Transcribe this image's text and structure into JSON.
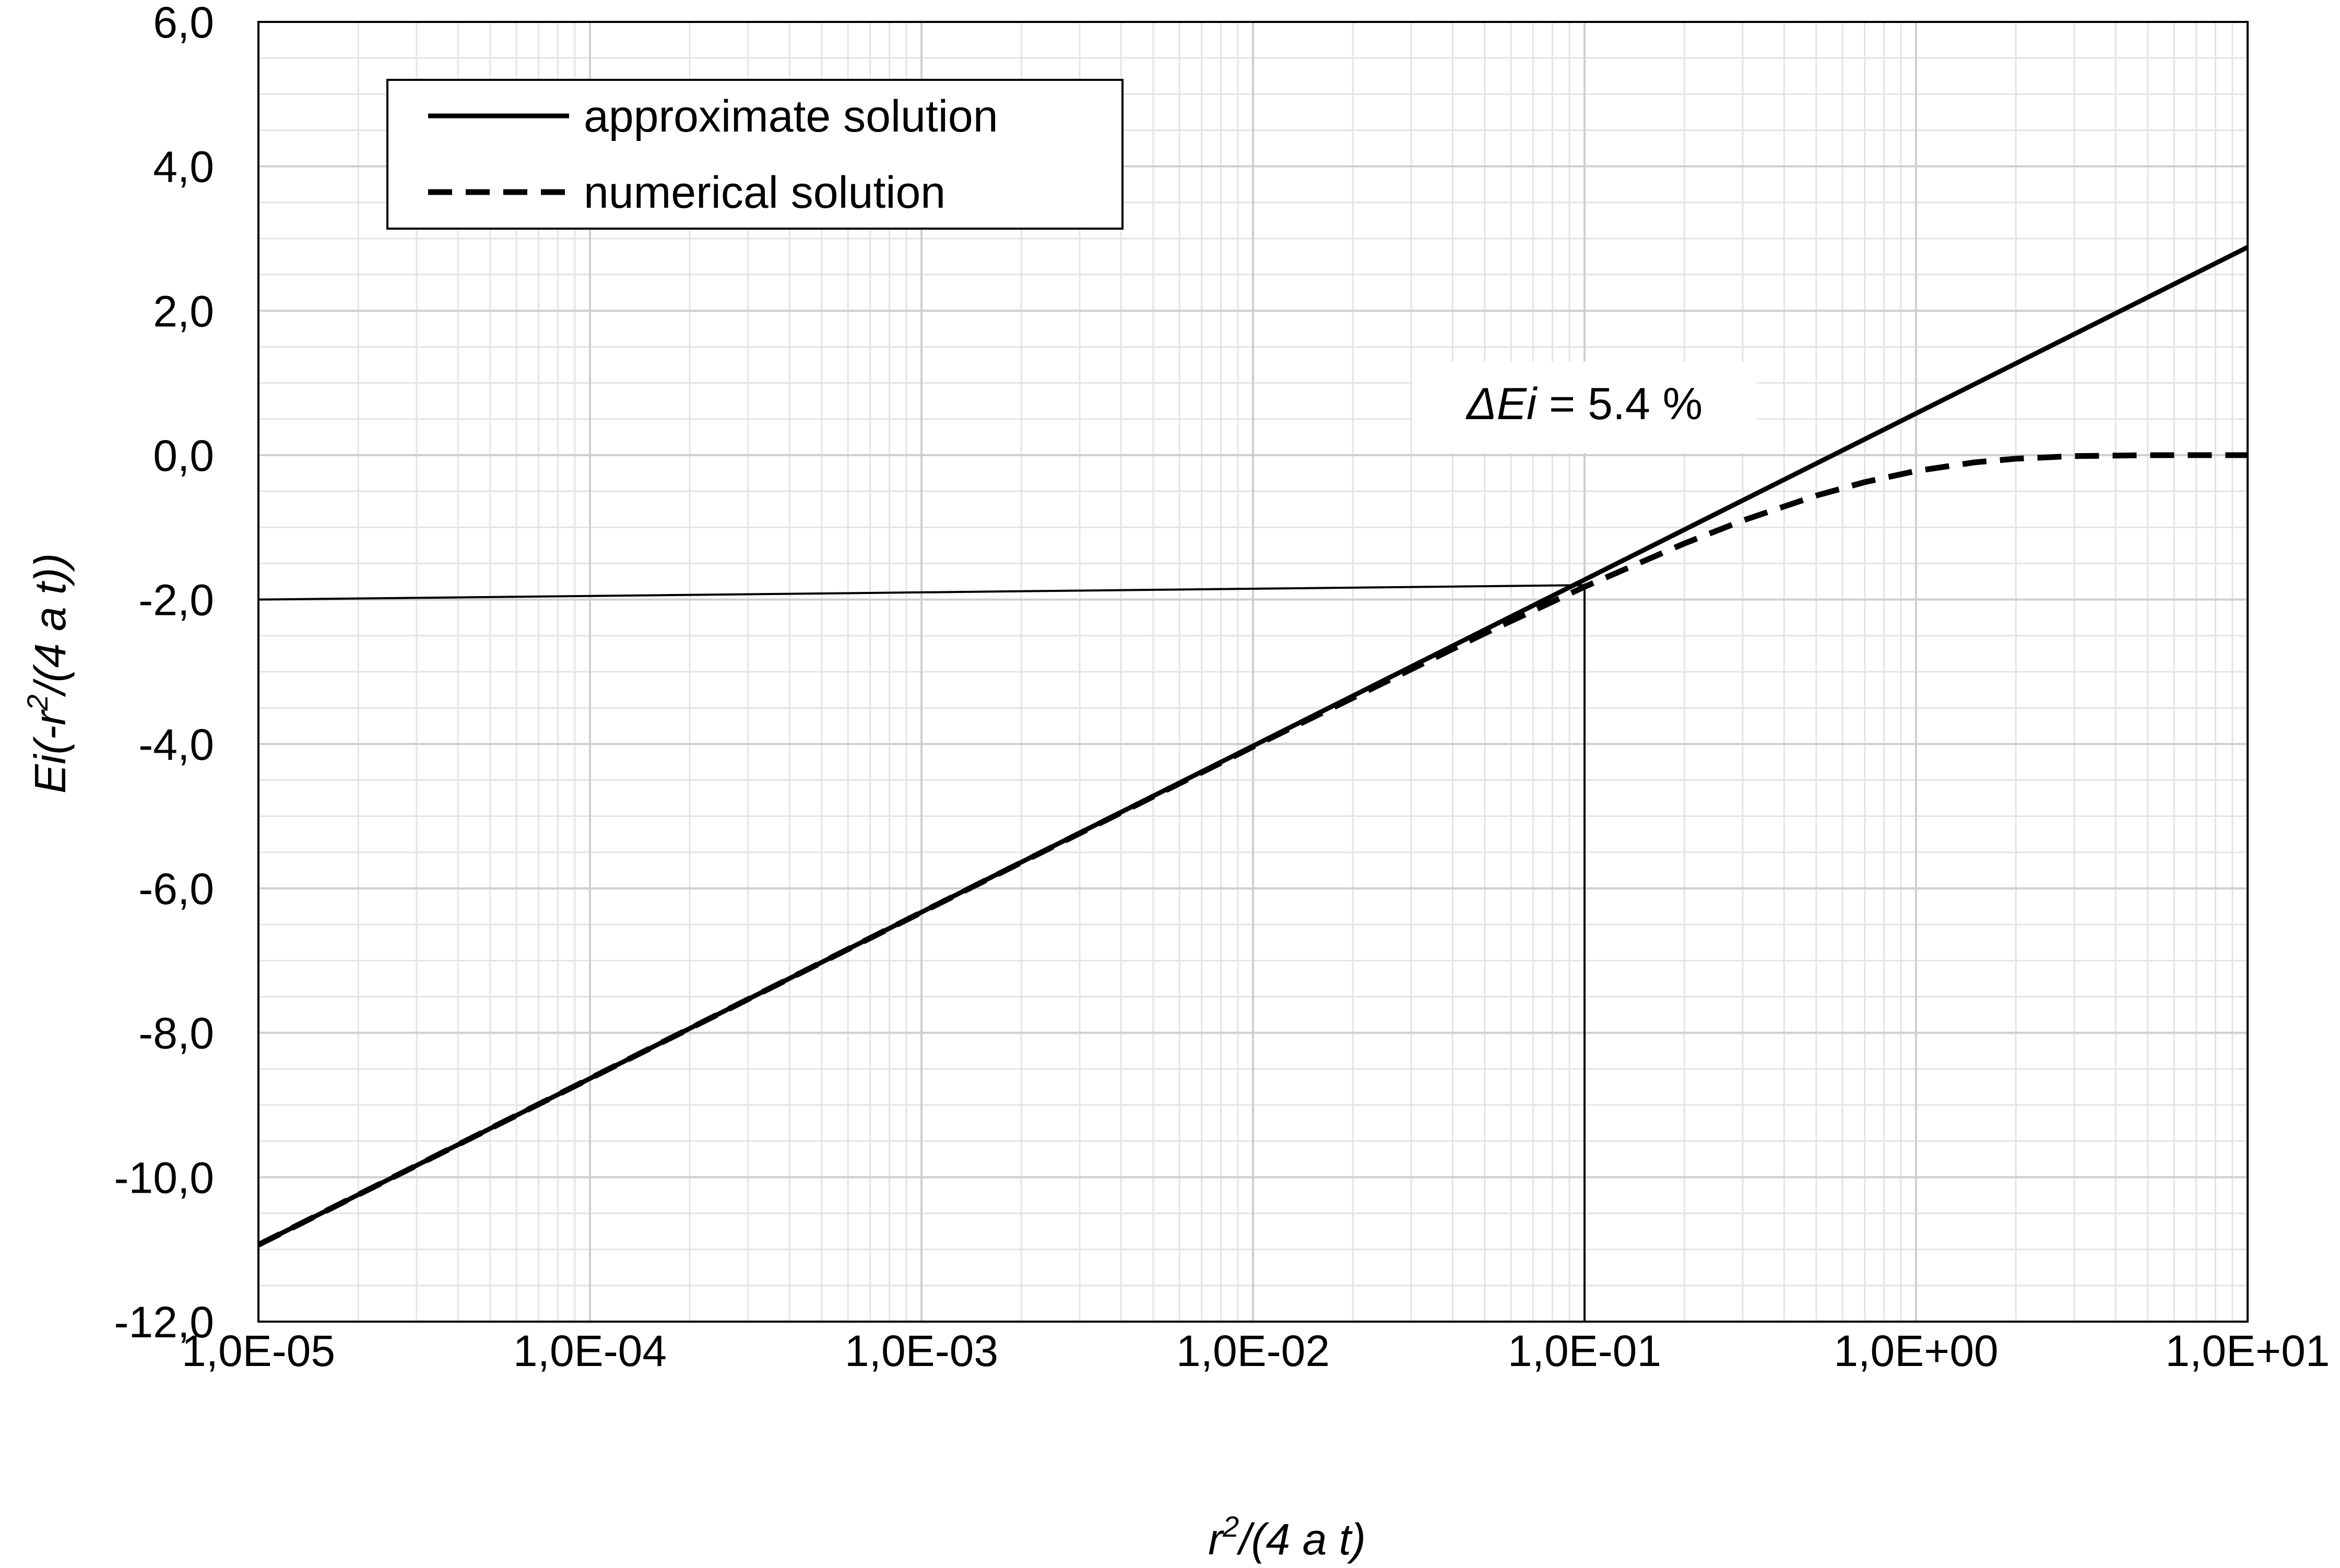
{
  "chart_data": {
    "type": "line",
    "x_scale": "log",
    "xlim": [
      1e-05,
      10
    ],
    "ylim": [
      -12,
      6
    ],
    "grid": true,
    "legend_position": "top-left",
    "x_tick_labels": [
      "1,0E-05",
      "1,0E-04",
      "1,0E-03",
      "1,0E-02",
      "1,0E-01",
      "1,0E+00",
      "1,0E+01"
    ],
    "y_tick_labels": [
      "6,0",
      "4,0",
      "2,0",
      "0,0",
      "-2,0",
      "-4,0",
      "-6,0",
      "-8,0",
      "-10,0",
      "-12,0"
    ],
    "xlabel": {
      "base": "r",
      "sup": "2",
      "rest": "/(4 a t)"
    },
    "ylabel": {
      "pre": "Ei(-r",
      "sup": "2",
      "post": "/(4 a t))"
    },
    "series": [
      {
        "name": "approximate solution",
        "style": "solid",
        "x": [
          1e-05,
          10
        ],
        "y": [
          -10.935,
          2.88
        ]
      },
      {
        "name": "numerical solution",
        "style": "dashed",
        "x": [
          1e-05,
          0.0001,
          0.001,
          0.01,
          0.05,
          0.1,
          0.2,
          0.3,
          0.5,
          0.7,
          1,
          1.5,
          2,
          3,
          5,
          7,
          10
        ],
        "y": [
          -10.936,
          -8.633,
          -6.332,
          -4.038,
          -2.468,
          -1.823,
          -1.223,
          -0.906,
          -0.56,
          -0.374,
          -0.219,
          -0.1,
          -0.049,
          -0.013,
          -0.001,
          0,
          0
        ]
      }
    ],
    "annotation": {
      "prefix": "ΔEi",
      "suffix": " = 5.4 %",
      "x": 0.1,
      "y": 0.5
    },
    "reference_lines": {
      "horizontal": {
        "from": [
          1e-05,
          -2.0
        ],
        "to": [
          0.1,
          -1.8
        ]
      },
      "vertical": {
        "from": [
          0.1,
          -1.8
        ],
        "to": [
          0.1,
          -12
        ]
      }
    }
  }
}
